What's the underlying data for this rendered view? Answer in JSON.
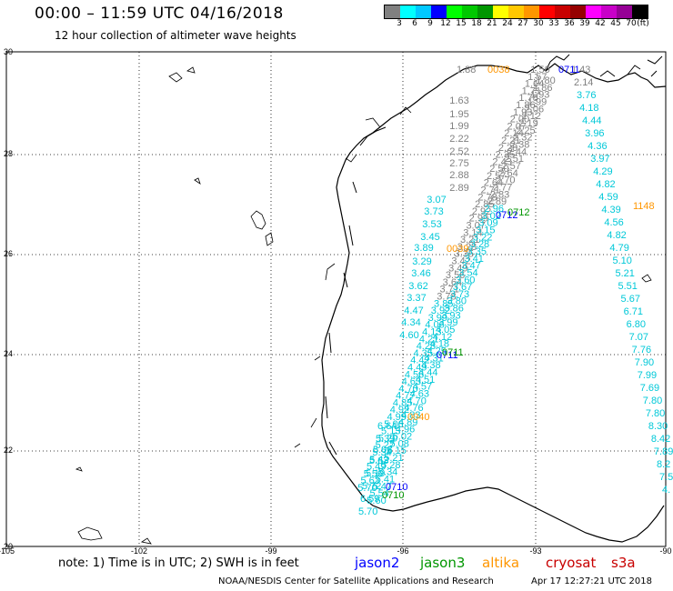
{
  "header": {
    "title": "00:00 – 11:59 UTC 04/16/2018",
    "subtitle": "12 hour collection of altimeter wave heights"
  },
  "colorbar": {
    "colors": [
      "#808080",
      "#00ffff",
      "#00c8ff",
      "#0000ff",
      "#00ff00",
      "#00c800",
      "#009600",
      "#ffff00",
      "#ffc800",
      "#ff9600",
      "#ff0000",
      "#c80000",
      "#960000",
      "#ff00ff",
      "#c800c8",
      "#960096",
      "#000000"
    ],
    "labels": [
      "3",
      "6",
      "9",
      "12",
      "15",
      "18",
      "21",
      "24",
      "27",
      "30",
      "33",
      "36",
      "39",
      "42",
      "45",
      "70",
      "(ft)"
    ]
  },
  "axes": {
    "lat_labels": [
      "30",
      "28",
      "26",
      "24",
      "22",
      "20"
    ],
    "lon_labels": [
      "-105",
      "-102",
      "-99",
      "-96",
      "-93",
      "-90"
    ]
  },
  "tracks": {
    "orange": [
      {
        "t": "0038"
      },
      {
        "t": "1148"
      },
      {
        "t": "0039"
      },
      {
        "t": "0040"
      }
    ],
    "blue": [
      {
        "t": "0711"
      },
      {
        "t": "0712"
      },
      {
        "t": "0711"
      },
      {
        "t": "0710"
      }
    ],
    "green": [
      {
        "t": "0712"
      },
      {
        "t": "0711"
      },
      {
        "t": "0710"
      }
    ],
    "gray_top": [
      "1.88"
    ],
    "gray_mid": [
      "1.63",
      "1.95",
      "1.99",
      "2.22",
      "2.52",
      "2.75",
      "2.88",
      "2.89"
    ],
    "cyan_left": [
      "3.07",
      "3.73",
      "3.53",
      "3.45",
      "3.89",
      "3.29",
      "3.46",
      "3.62",
      "3.37",
      "4.47",
      "4.34",
      "4.60"
    ],
    "right_track": [
      "1.43",
      "2.14",
      "3.76",
      "4.18",
      "4.44",
      "3.96",
      "4.36",
      "3.97",
      "4.29",
      "4.82",
      "4.59",
      "4.39",
      "4.56",
      "4.82",
      "4.79",
      "5.10",
      "5.21",
      "5.51",
      "5.67",
      "6.71",
      "6.80",
      "7.07",
      "7.76",
      "7.90",
      "7.99",
      "7.69",
      "7.80",
      "7.80",
      "8.30",
      "8.42",
      "7.89",
      "8.2",
      "7.5",
      "4."
    ],
    "right_track_orange": [
      "1148"
    ],
    "bottom_cyan": [
      "6.64",
      "5.39",
      "5.06",
      "5.63",
      "5.19",
      "5.72",
      "6.59",
      "5.70"
    ]
  },
  "legend": {
    "note": "note: 1) Time is in UTC; 2) SWH is in feet",
    "sats": [
      {
        "name": "jason2",
        "color": "#0000ff"
      },
      {
        "name": "jason3",
        "color": "#009600"
      },
      {
        "name": "altika",
        "color": "#ff9600"
      },
      {
        "name": "cryosat",
        "color": "#c80000"
      },
      {
        "name": "s3a",
        "color": "#c80000"
      }
    ]
  },
  "footer": {
    "credit": "NOAA/NESDIS Center for Satellite Applications and Research",
    "stamp": "Apr 17 12:27:21 UTC 2018"
  }
}
